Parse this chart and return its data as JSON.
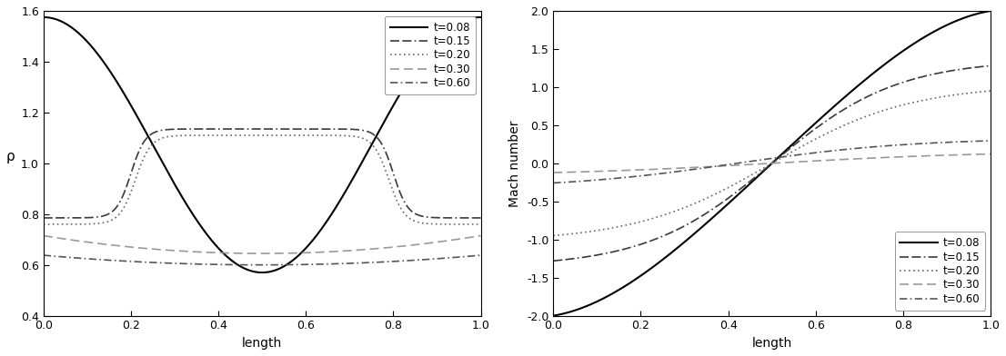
{
  "left_ylabel": "ρ",
  "left_xlabel": "length",
  "left_ylim": [
    0.4,
    1.6
  ],
  "left_xlim": [
    0.0,
    1.0
  ],
  "left_yticks": [
    0.4,
    0.6,
    0.8,
    1.0,
    1.2,
    1.4,
    1.6
  ],
  "left_xticks": [
    0.0,
    0.2,
    0.4,
    0.6,
    0.8,
    1.0
  ],
  "right_ylabel": "Mach number",
  "right_xlabel": "length",
  "right_ylim": [
    -2.0,
    2.0
  ],
  "right_xlim": [
    0.0,
    1.0
  ],
  "right_yticks": [
    -2.0,
    -1.5,
    -1.0,
    -0.5,
    0.0,
    0.5,
    1.0,
    1.5,
    2.0
  ],
  "right_xticks": [
    0.0,
    0.2,
    0.4,
    0.6,
    0.8,
    1.0
  ],
  "legend_labels": [
    "t=0.08",
    "t=0.15",
    "t=0.20",
    "t=0.30",
    "t=0.60"
  ],
  "background_color": "#ffffff",
  "line_colors": [
    "#000000",
    "#444444",
    "#777777",
    "#aaaaaa",
    "#555555"
  ],
  "line_widths": [
    1.5,
    1.2,
    1.2,
    1.2,
    1.2
  ]
}
